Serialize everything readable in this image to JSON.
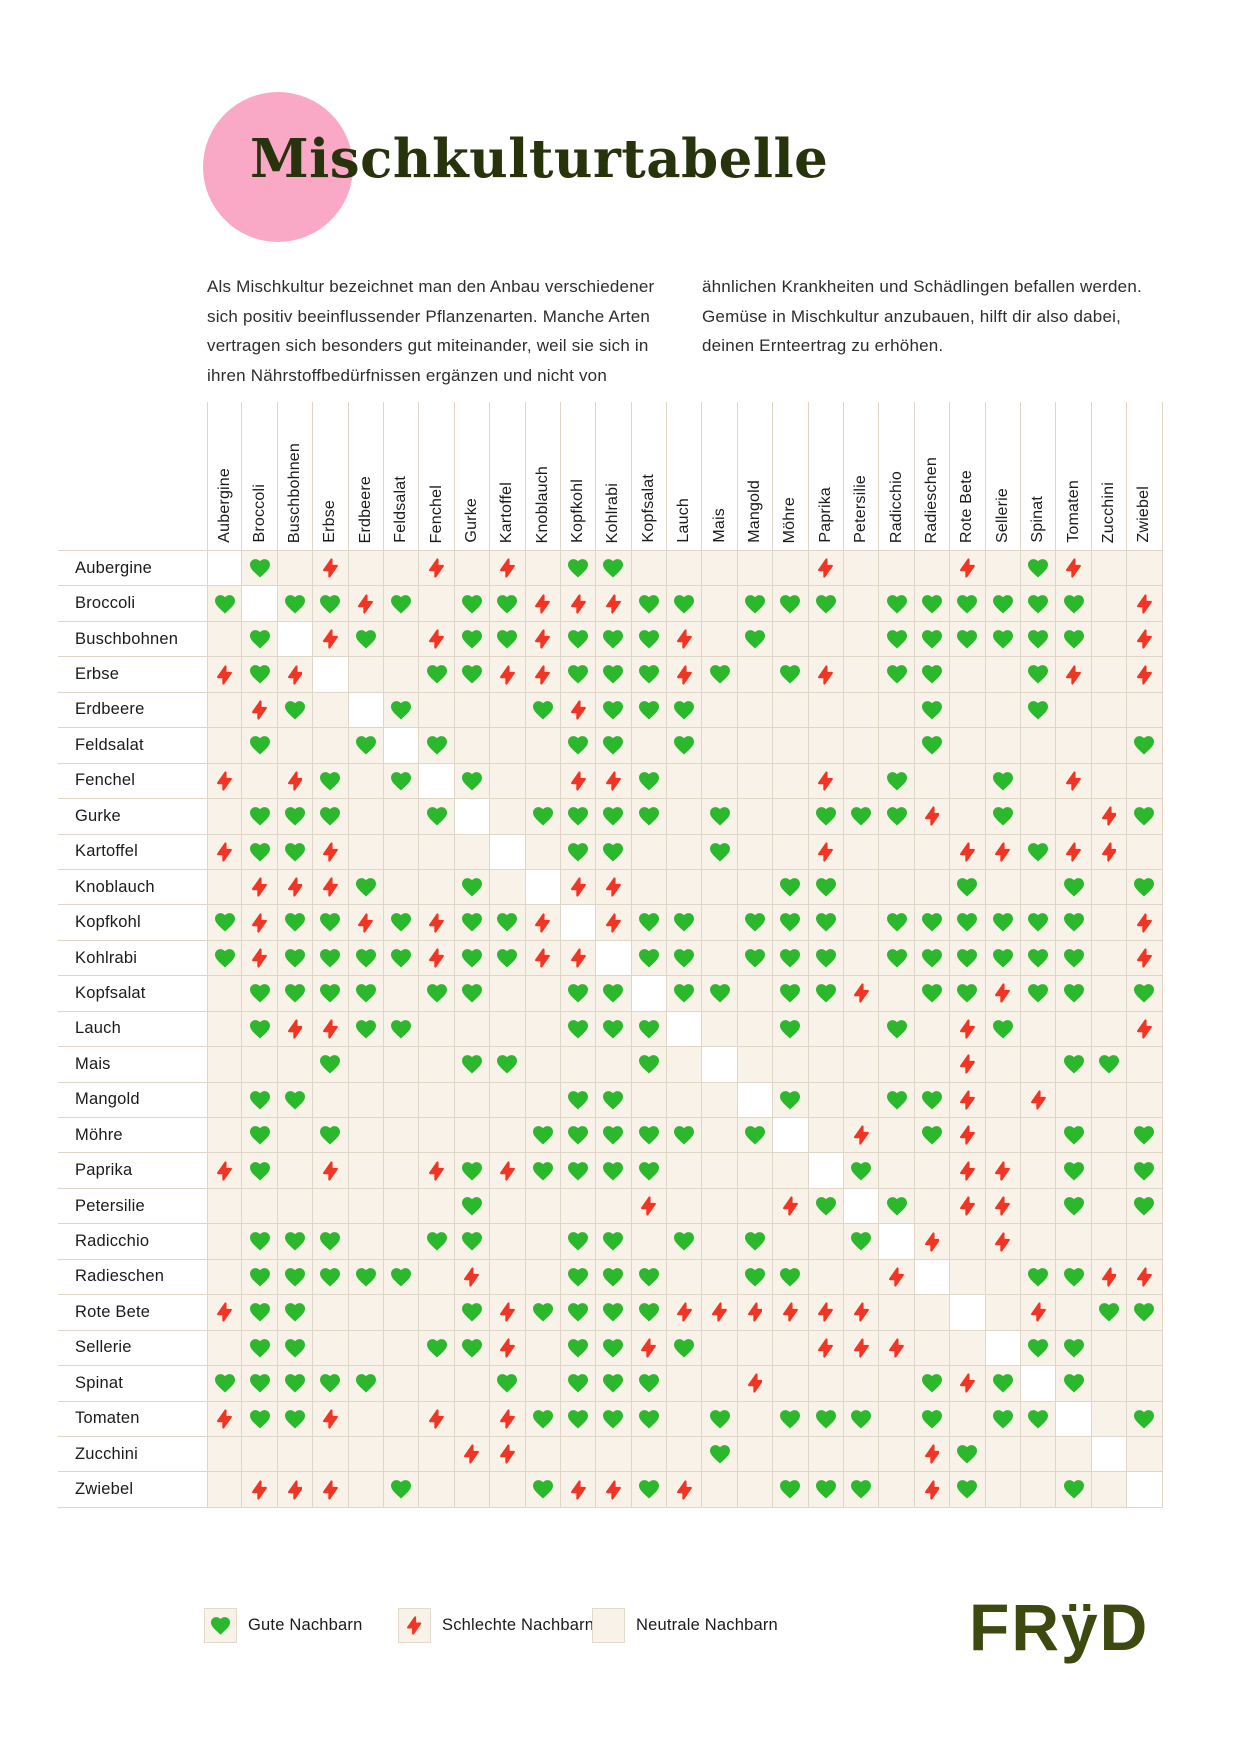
{
  "title": "Mischkulturtabelle",
  "intro": {
    "left_lines": [
      "Als Mischkultur bezeichnet man den Anbau verschiedener",
      "sich positiv beeinflussender Pflanzenarten. Manche Arten",
      "vertragen sich besonders gut miteinander, weil sie sich in",
      "ihren Nährstoffbedürfnissen ergänzen und nicht von"
    ],
    "right_lines": [
      "ähnlichen Krankheiten und Schädlingen befallen werden.",
      "Gemüse in Mischkultur anzubauen, hilft dir also dabei,",
      "deinen Ernteertrag zu erhöhen."
    ]
  },
  "plants": [
    "Aubergine",
    "Broccoli",
    "Buschbohnen",
    "Erbse",
    "Erdbeere",
    "Feldsalat",
    "Fenchel",
    "Gurke",
    "Kartoffel",
    "Knoblauch",
    "Kopfkohl",
    "Kohlrabi",
    "Kopfsalat",
    "Lauch",
    "Mais",
    "Mangold",
    "Möhre",
    "Paprika",
    "Petersilie",
    "Radicchio",
    "Radieschen",
    "Rote Bete",
    "Sellerie",
    "Spinat",
    "Tomaten",
    "Zucchini",
    "Zwiebel"
  ],
  "matrix_legend": "rows × columns in plant order; G = Gute Nachbarn (heart), B = Schlechte Nachbarn (bolt), . = neutral, X = same plant (blank white cell)",
  "matrix": [
    "XG.B..B.B.GG.....B...B.GB..",
    "GXGGBG.GGBBBGG.GGG.GGGGGG.B",
    ".GXBG.BGGBGGGB.G...GGGGGG.B",
    "BGBX..GGBBGGGBG.GB.GG..GB.B",
    ".BG.XG...GBGGG......G..G...",
    ".G..GXG...GG.G......G.....G",
    "B.BG.GXG..BBG....B.G..G.B..",
    ".GGG..GX.GGGG.G..GGGB.G..BG",
    "BGGB....X.GG..G..B...BBGBB.",
    ".BBBG..G.XBB....GG...G..G.G",
    "GBGGBGBGGBXBGG.GGG.GGGGGG.B",
    "GBGGGGBGGBBXGG.GGG.GGGGGG.B",
    ".GGGG.GG..GGXGG.GGB.GGBGG.G",
    ".GBBGG....GGGX..G..G.BG...B",
    "...G...GG...G.X......B..GG.",
    ".GG.......GG...XG..GGB.B...",
    ".G.G.....GGGGG.GX.B.GB..G.G",
    "BG.B..BGBGGGG....XG..BB.G.G",
    ".......G....B...BGXG.BB.G.G",
    ".GGG..GG..GG.G.G..GXB.B....",
    ".GGGGG.B..GGG..GG..BX..GGBB",
    "BGG....GBGGGGBBBBBB..X.B.GG",
    ".GG...GGB.GGBG...BBB..XGG..",
    "GGGGG...G.GGG..B....GBGXG..",
    "BGGB..B.BGGGG.G.GGG.G.GGX.G",
    ".......BB.....G.....BG...X.",
    ".BBB.G...GBBGB..GGG.BG..G.X"
  ],
  "legend": {
    "good": "Gute Nachbarn",
    "bad": "Schlechte Nachbarn",
    "neutral": "Neutrale Nachbarn"
  },
  "logo": "FRÿD",
  "colors": {
    "heart": "#2cb82c",
    "bolt": "#f13524",
    "pink": "#f9a8c6",
    "title": "#26330b",
    "logo": "#3c490f"
  }
}
